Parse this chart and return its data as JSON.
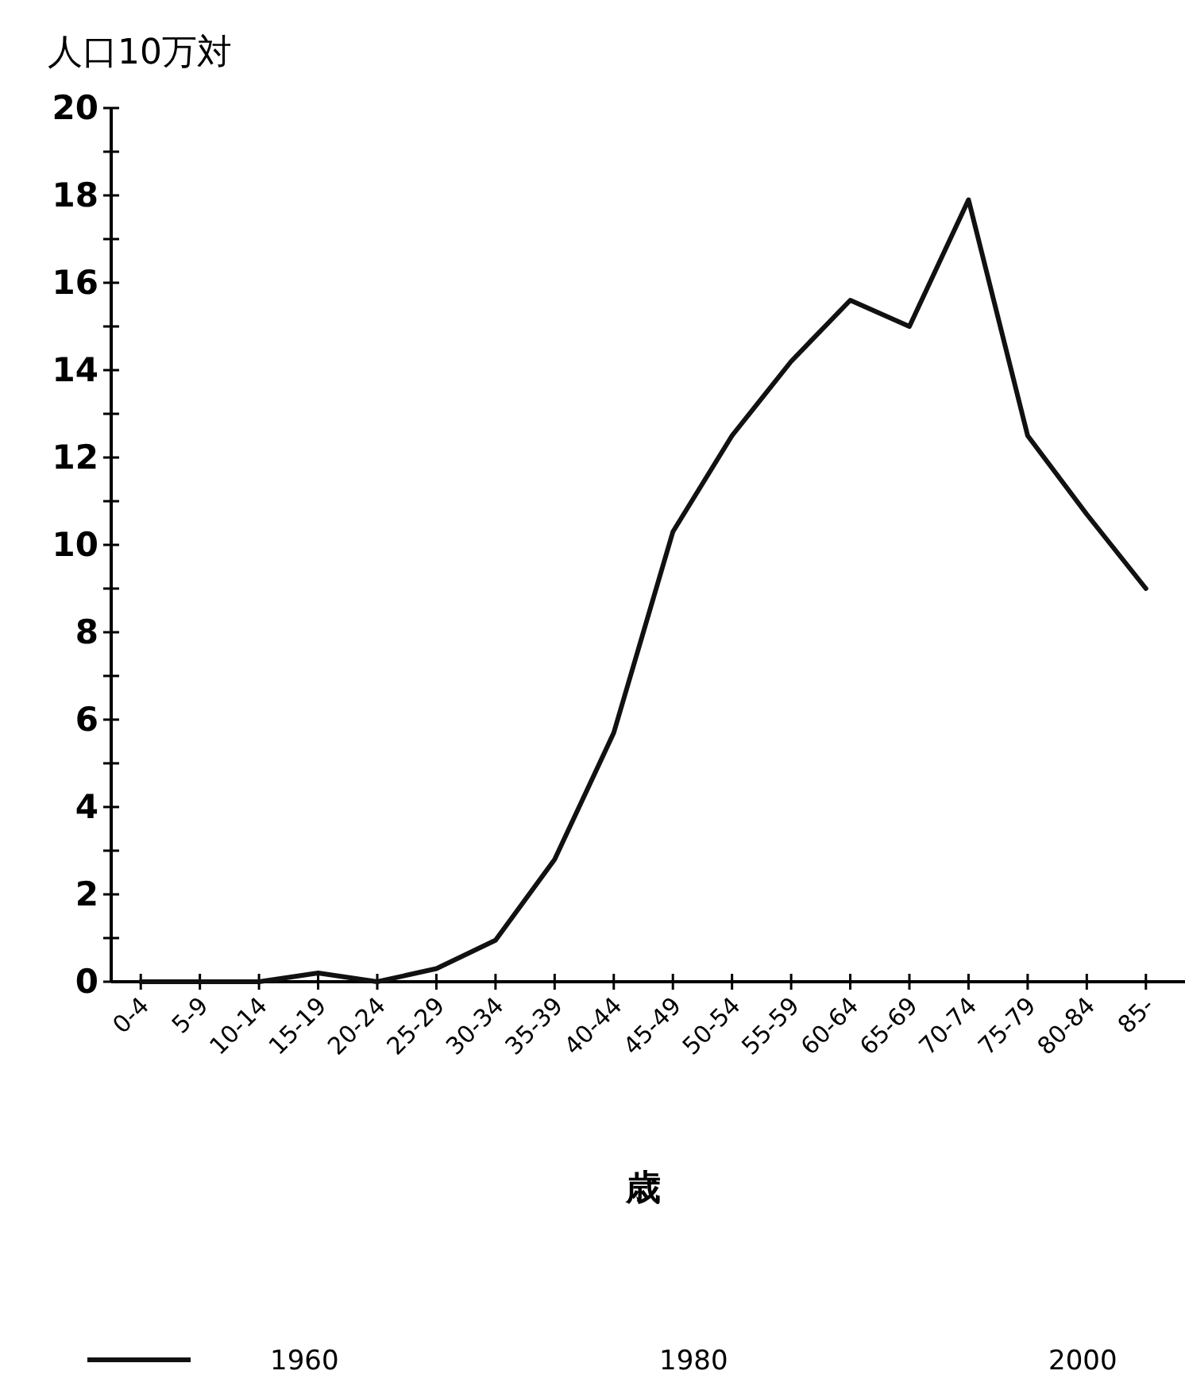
{
  "chart_data": {
    "type": "line",
    "ylabel": "人口10万対",
    "xlabel": "歳",
    "categories": [
      "0-4",
      "5-9",
      "10-14",
      "15-19",
      "20-24",
      "25-29",
      "30-34",
      "35-39",
      "40-44",
      "45-49",
      "50-54",
      "55-59",
      "60-64",
      "65-69",
      "70-74",
      "75-79",
      "80-84",
      "85-"
    ],
    "series": [
      {
        "name": "1960",
        "color": "#111111",
        "values": [
          0,
          0,
          0,
          0.2,
          0,
          0.3,
          0.95,
          2.8,
          5.7,
          10.3,
          12.5,
          14.2,
          15.6,
          15.0,
          17.9,
          12.5,
          10.7,
          9.0
        ]
      },
      {
        "name": "1980",
        "values": [
          null,
          null,
          null,
          null,
          null,
          null,
          null,
          null,
          null,
          null,
          null,
          null,
          null,
          null,
          null,
          null,
          null,
          null
        ]
      },
      {
        "name": "2000",
        "values": [
          null,
          null,
          null,
          null,
          null,
          null,
          null,
          null,
          null,
          null,
          null,
          null,
          null,
          null,
          null,
          null,
          null,
          null
        ]
      }
    ],
    "ylim": [
      0,
      20
    ],
    "yticks": [
      0,
      {
        "value": 1,
        "label": null
      },
      2,
      {
        "value": 3,
        "label": null
      },
      4,
      {
        "value": 5,
        "label": null
      },
      6,
      {
        "value": 7,
        "label": null
      },
      8,
      {
        "value": 9,
        "label": null
      },
      10,
      {
        "value": 11,
        "label": null
      },
      12,
      {
        "value": 13,
        "label": null
      },
      14,
      {
        "value": 15,
        "label": null
      },
      16,
      {
        "value": 17,
        "label": null
      },
      18,
      {
        "value": 19,
        "label": null
      },
      20
    ],
    "grid": false,
    "legend": "bottom",
    "marker": "none",
    "line_style": "solid"
  }
}
